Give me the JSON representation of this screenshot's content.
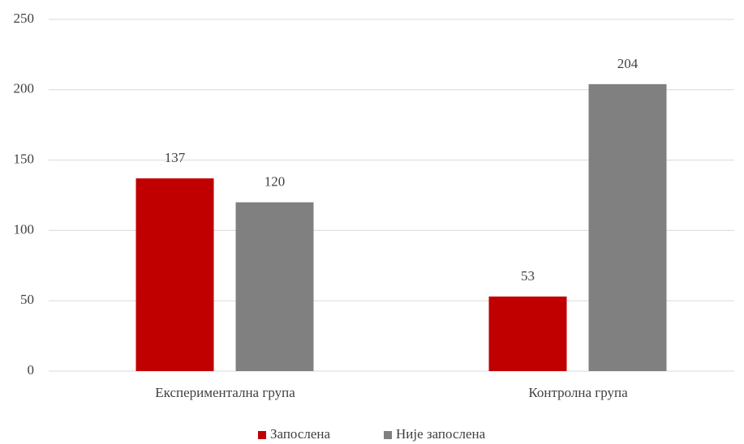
{
  "chart_data": {
    "type": "bar",
    "categories": [
      "Експериментална група",
      "Контролна група"
    ],
    "series": [
      {
        "name": "Запослена",
        "color": "#c00000",
        "values": [
          137,
          53
        ]
      },
      {
        "name": "Није запослена",
        "color": "#808080",
        "values": [
          120,
          204
        ]
      }
    ],
    "ylim": [
      0,
      250
    ],
    "yticks": [
      0,
      50,
      100,
      150,
      200,
      250
    ],
    "grid": true,
    "legend": "bottom"
  }
}
